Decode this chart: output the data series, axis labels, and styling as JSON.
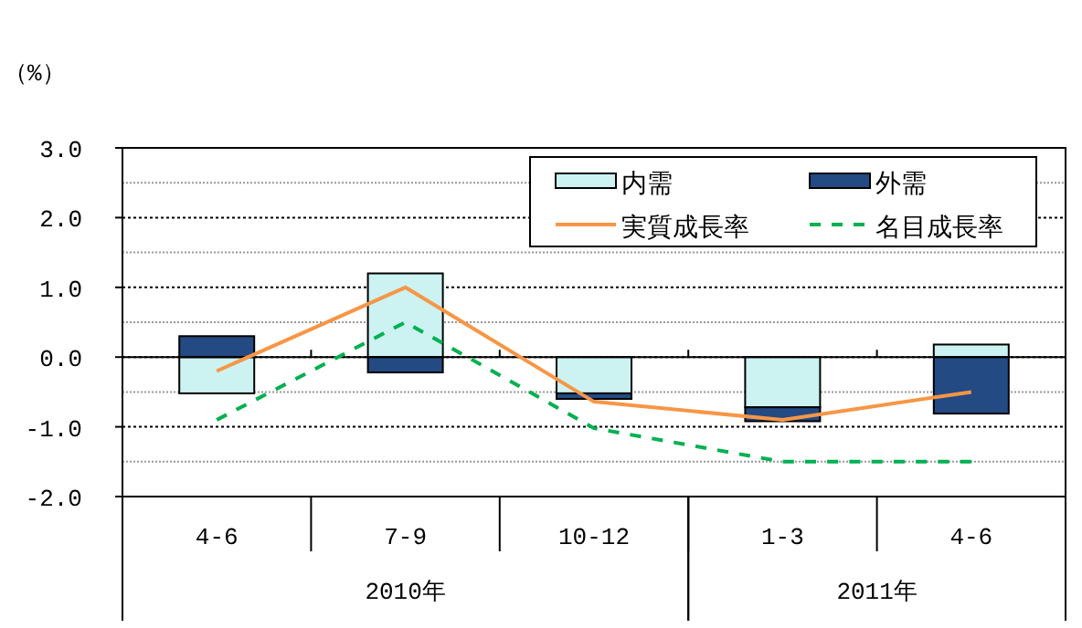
{
  "chart_data": {
    "type": "bar",
    "stacked": true,
    "ylabel": "（%）",
    "categories": [
      "4-6",
      "7-9",
      "10-12",
      "1-3",
      "4-6"
    ],
    "series": [
      {
        "name": "内需",
        "color": "#ccf2f2",
        "values": [
          -0.52,
          1.2,
          -0.52,
          -0.72,
          0.18
        ]
      },
      {
        "name": "外需",
        "color": "#234a82",
        "values": [
          0.3,
          -0.22,
          -0.08,
          -0.2,
          -0.81
        ]
      },
      {
        "name": "実質成長率",
        "type": "line",
        "color": "#f79646",
        "line_style": "solid",
        "values": [
          -0.2,
          1.0,
          -0.64,
          -0.9,
          -0.5
        ]
      },
      {
        "name": "名目成長率",
        "type": "line",
        "color": "#00b050",
        "line_style": "dashed",
        "values": [
          -0.9,
          0.5,
          -1.02,
          -1.5,
          -1.5
        ]
      }
    ],
    "ylim": [
      -2.0,
      3.0
    ],
    "yticks": [
      {
        "value": -2,
        "label": "-2.0"
      },
      {
        "value": -1.5,
        "label": null
      },
      {
        "value": -1,
        "label": "-1.0"
      },
      {
        "value": -0.5,
        "label": null
      },
      {
        "value": 0,
        "label": "0.0"
      },
      {
        "value": 0.5,
        "label": null
      },
      {
        "value": 1,
        "label": "1.0"
      },
      {
        "value": 1.5,
        "label": null
      },
      {
        "value": 2,
        "label": "2.0"
      },
      {
        "value": 2.5,
        "label": null
      },
      {
        "value": 3,
        "label": "3.0"
      }
    ],
    "grid": "y",
    "legend": "top right",
    "annotations": [
      "2010年",
      "2011年"
    ]
  }
}
